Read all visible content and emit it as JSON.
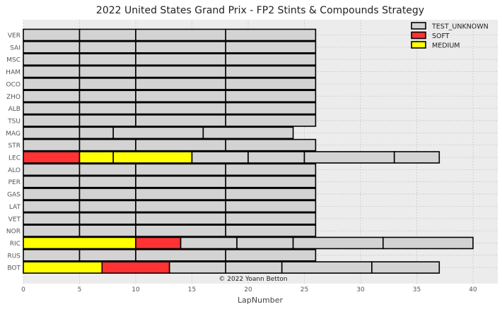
{
  "chart_data": {
    "type": "bar",
    "orientation": "horizontal-stacked",
    "title": "2022 United States Grand Prix - FP2 Stints & Compounds Strategy",
    "xlabel": "LapNumber",
    "ylabel": "",
    "xlim": [
      0,
      42
    ],
    "xticks": [
      0,
      5,
      10,
      15,
      20,
      25,
      30,
      35,
      40
    ],
    "grid": true,
    "legend_position": "top-right",
    "credit": "© 2022 Yoann Betton",
    "compounds": [
      {
        "name": "TEST_UNKNOWN",
        "color": "#d3d3d3"
      },
      {
        "name": "SOFT",
        "color": "#ff3333"
      },
      {
        "name": "MEDIUM",
        "color": "#ffff00"
      }
    ],
    "drivers": [
      {
        "name": "VER",
        "stints": [
          {
            "compound": "TEST_UNKNOWN",
            "start": 0,
            "end": 5
          },
          {
            "compound": "TEST_UNKNOWN",
            "start": 5,
            "end": 10
          },
          {
            "compound": "TEST_UNKNOWN",
            "start": 10,
            "end": 18
          },
          {
            "compound": "TEST_UNKNOWN",
            "start": 18,
            "end": 26
          }
        ]
      },
      {
        "name": "SAI",
        "stints": [
          {
            "compound": "TEST_UNKNOWN",
            "start": 0,
            "end": 5
          },
          {
            "compound": "TEST_UNKNOWN",
            "start": 5,
            "end": 10
          },
          {
            "compound": "TEST_UNKNOWN",
            "start": 10,
            "end": 18
          },
          {
            "compound": "TEST_UNKNOWN",
            "start": 18,
            "end": 26
          }
        ]
      },
      {
        "name": "MSC",
        "stints": [
          {
            "compound": "TEST_UNKNOWN",
            "start": 0,
            "end": 5
          },
          {
            "compound": "TEST_UNKNOWN",
            "start": 5,
            "end": 10
          },
          {
            "compound": "TEST_UNKNOWN",
            "start": 10,
            "end": 18
          },
          {
            "compound": "TEST_UNKNOWN",
            "start": 18,
            "end": 26
          }
        ]
      },
      {
        "name": "HAM",
        "stints": [
          {
            "compound": "TEST_UNKNOWN",
            "start": 0,
            "end": 5
          },
          {
            "compound": "TEST_UNKNOWN",
            "start": 5,
            "end": 10
          },
          {
            "compound": "TEST_UNKNOWN",
            "start": 10,
            "end": 18
          },
          {
            "compound": "TEST_UNKNOWN",
            "start": 18,
            "end": 26
          }
        ]
      },
      {
        "name": "OCO",
        "stints": [
          {
            "compound": "TEST_UNKNOWN",
            "start": 0,
            "end": 5
          },
          {
            "compound": "TEST_UNKNOWN",
            "start": 5,
            "end": 10
          },
          {
            "compound": "TEST_UNKNOWN",
            "start": 10,
            "end": 18
          },
          {
            "compound": "TEST_UNKNOWN",
            "start": 18,
            "end": 26
          }
        ]
      },
      {
        "name": "ZHO",
        "stints": [
          {
            "compound": "TEST_UNKNOWN",
            "start": 0,
            "end": 5
          },
          {
            "compound": "TEST_UNKNOWN",
            "start": 5,
            "end": 10
          },
          {
            "compound": "TEST_UNKNOWN",
            "start": 10,
            "end": 18
          },
          {
            "compound": "TEST_UNKNOWN",
            "start": 18,
            "end": 26
          }
        ]
      },
      {
        "name": "ALB",
        "stints": [
          {
            "compound": "TEST_UNKNOWN",
            "start": 0,
            "end": 5
          },
          {
            "compound": "TEST_UNKNOWN",
            "start": 5,
            "end": 10
          },
          {
            "compound": "TEST_UNKNOWN",
            "start": 10,
            "end": 18
          },
          {
            "compound": "TEST_UNKNOWN",
            "start": 18,
            "end": 26
          }
        ]
      },
      {
        "name": "TSU",
        "stints": [
          {
            "compound": "TEST_UNKNOWN",
            "start": 0,
            "end": 5
          },
          {
            "compound": "TEST_UNKNOWN",
            "start": 5,
            "end": 10
          },
          {
            "compound": "TEST_UNKNOWN",
            "start": 10,
            "end": 18
          },
          {
            "compound": "TEST_UNKNOWN",
            "start": 18,
            "end": 26
          }
        ]
      },
      {
        "name": "MAG",
        "stints": [
          {
            "compound": "TEST_UNKNOWN",
            "start": 0,
            "end": 5
          },
          {
            "compound": "TEST_UNKNOWN",
            "start": 5,
            "end": 8
          },
          {
            "compound": "TEST_UNKNOWN",
            "start": 8,
            "end": 16
          },
          {
            "compound": "TEST_UNKNOWN",
            "start": 16,
            "end": 24
          }
        ]
      },
      {
        "name": "STR",
        "stints": [
          {
            "compound": "TEST_UNKNOWN",
            "start": 0,
            "end": 5
          },
          {
            "compound": "TEST_UNKNOWN",
            "start": 5,
            "end": 10
          },
          {
            "compound": "TEST_UNKNOWN",
            "start": 10,
            "end": 18
          },
          {
            "compound": "TEST_UNKNOWN",
            "start": 18,
            "end": 26
          }
        ]
      },
      {
        "name": "LEC",
        "stints": [
          {
            "compound": "SOFT",
            "start": 0,
            "end": 5
          },
          {
            "compound": "MEDIUM",
            "start": 5,
            "end": 8
          },
          {
            "compound": "MEDIUM",
            "start": 8,
            "end": 15
          },
          {
            "compound": "TEST_UNKNOWN",
            "start": 15,
            "end": 20
          },
          {
            "compound": "TEST_UNKNOWN",
            "start": 20,
            "end": 25
          },
          {
            "compound": "TEST_UNKNOWN",
            "start": 25,
            "end": 33
          },
          {
            "compound": "TEST_UNKNOWN",
            "start": 33,
            "end": 37
          }
        ]
      },
      {
        "name": "ALO",
        "stints": [
          {
            "compound": "TEST_UNKNOWN",
            "start": 0,
            "end": 5
          },
          {
            "compound": "TEST_UNKNOWN",
            "start": 5,
            "end": 10
          },
          {
            "compound": "TEST_UNKNOWN",
            "start": 10,
            "end": 18
          },
          {
            "compound": "TEST_UNKNOWN",
            "start": 18,
            "end": 26
          }
        ]
      },
      {
        "name": "PER",
        "stints": [
          {
            "compound": "TEST_UNKNOWN",
            "start": 0,
            "end": 5
          },
          {
            "compound": "TEST_UNKNOWN",
            "start": 5,
            "end": 10
          },
          {
            "compound": "TEST_UNKNOWN",
            "start": 10,
            "end": 18
          },
          {
            "compound": "TEST_UNKNOWN",
            "start": 18,
            "end": 26
          }
        ]
      },
      {
        "name": "GAS",
        "stints": [
          {
            "compound": "TEST_UNKNOWN",
            "start": 0,
            "end": 5
          },
          {
            "compound": "TEST_UNKNOWN",
            "start": 5,
            "end": 10
          },
          {
            "compound": "TEST_UNKNOWN",
            "start": 10,
            "end": 18
          },
          {
            "compound": "TEST_UNKNOWN",
            "start": 18,
            "end": 26
          }
        ]
      },
      {
        "name": "LAT",
        "stints": [
          {
            "compound": "TEST_UNKNOWN",
            "start": 0,
            "end": 5
          },
          {
            "compound": "TEST_UNKNOWN",
            "start": 5,
            "end": 10
          },
          {
            "compound": "TEST_UNKNOWN",
            "start": 10,
            "end": 18
          },
          {
            "compound": "TEST_UNKNOWN",
            "start": 18,
            "end": 26
          }
        ]
      },
      {
        "name": "VET",
        "stints": [
          {
            "compound": "TEST_UNKNOWN",
            "start": 0,
            "end": 5
          },
          {
            "compound": "TEST_UNKNOWN",
            "start": 5,
            "end": 10
          },
          {
            "compound": "TEST_UNKNOWN",
            "start": 10,
            "end": 18
          },
          {
            "compound": "TEST_UNKNOWN",
            "start": 18,
            "end": 26
          }
        ]
      },
      {
        "name": "NOR",
        "stints": [
          {
            "compound": "TEST_UNKNOWN",
            "start": 0,
            "end": 5
          },
          {
            "compound": "TEST_UNKNOWN",
            "start": 5,
            "end": 10
          },
          {
            "compound": "TEST_UNKNOWN",
            "start": 10,
            "end": 18
          },
          {
            "compound": "TEST_UNKNOWN",
            "start": 18,
            "end": 26
          }
        ]
      },
      {
        "name": "RIC",
        "stints": [
          {
            "compound": "MEDIUM",
            "start": 0,
            "end": 10
          },
          {
            "compound": "SOFT",
            "start": 10,
            "end": 14
          },
          {
            "compound": "TEST_UNKNOWN",
            "start": 14,
            "end": 19
          },
          {
            "compound": "TEST_UNKNOWN",
            "start": 19,
            "end": 24
          },
          {
            "compound": "TEST_UNKNOWN",
            "start": 24,
            "end": 32
          },
          {
            "compound": "TEST_UNKNOWN",
            "start": 32,
            "end": 40
          }
        ]
      },
      {
        "name": "RUS",
        "stints": [
          {
            "compound": "TEST_UNKNOWN",
            "start": 0,
            "end": 5
          },
          {
            "compound": "TEST_UNKNOWN",
            "start": 5,
            "end": 10
          },
          {
            "compound": "TEST_UNKNOWN",
            "start": 10,
            "end": 18
          },
          {
            "compound": "TEST_UNKNOWN",
            "start": 18,
            "end": 26
          }
        ]
      },
      {
        "name": "BOT",
        "stints": [
          {
            "compound": "MEDIUM",
            "start": 0,
            "end": 7
          },
          {
            "compound": "SOFT",
            "start": 7,
            "end": 13
          },
          {
            "compound": "TEST_UNKNOWN",
            "start": 13,
            "end": 18
          },
          {
            "compound": "TEST_UNKNOWN",
            "start": 18,
            "end": 23
          },
          {
            "compound": "TEST_UNKNOWN",
            "start": 23,
            "end": 31
          },
          {
            "compound": "TEST_UNKNOWN",
            "start": 31,
            "end": 37
          }
        ]
      }
    ]
  }
}
